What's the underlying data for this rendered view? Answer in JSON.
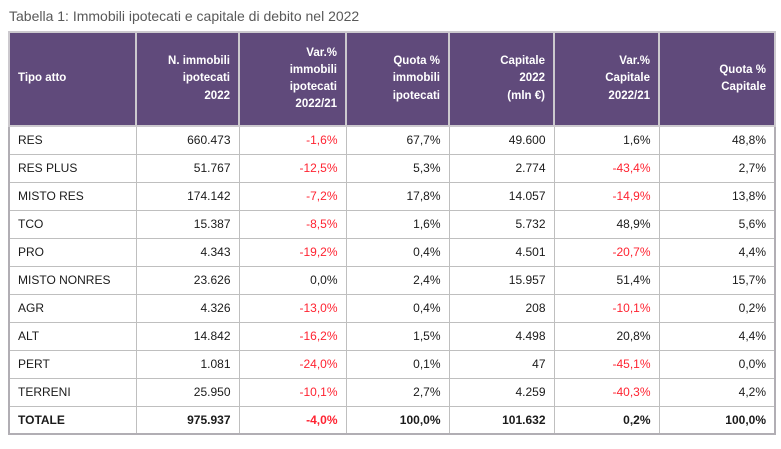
{
  "title": "Tabella 1: Immobili ipotecati e capitale di debito nel 2022",
  "colors": {
    "header_bg": "#604a7b",
    "header_text": "#ffffff",
    "negative": "#ff2331",
    "body_text": "#1a1a1a",
    "title_text": "#595959",
    "border": "#bfbfbf",
    "outer_border": "#b1aeb4",
    "page_bg": "#ffffff"
  },
  "table": {
    "columns": [
      {
        "key": "tipo_atto",
        "label": "Tipo atto"
      },
      {
        "key": "n_immobili_ipotecati_2022",
        "label": "N. immobili\nipotecati\n2022"
      },
      {
        "key": "var_pct_immobili_2022_21",
        "label": "Var.%\nimmobili\nipotecati\n2022/21"
      },
      {
        "key": "quota_pct_immobili",
        "label": "Quota %\nimmobili\nipotecati"
      },
      {
        "key": "capitale_2022_mln_eur",
        "label": "Capitale\n2022\n(mln €)"
      },
      {
        "key": "var_pct_capitale_2022_21",
        "label": "Var.%\nCapitale\n2022/21"
      },
      {
        "key": "quota_pct_capitale",
        "label": "Quota %\nCapitale"
      }
    ],
    "rows": [
      [
        "RES",
        "660.473",
        "-1,6%",
        "67,7%",
        "49.600",
        "1,6%",
        "48,8%"
      ],
      [
        "RES PLUS",
        "51.767",
        "-12,5%",
        "5,3%",
        "2.774",
        "-43,4%",
        "2,7%"
      ],
      [
        "MISTO RES",
        "174.142",
        "-7,2%",
        "17,8%",
        "14.057",
        "-14,9%",
        "13,8%"
      ],
      [
        "TCO",
        "15.387",
        "-8,5%",
        "1,6%",
        "5.732",
        "48,9%",
        "5,6%"
      ],
      [
        "PRO",
        "4.343",
        "-19,2%",
        "0,4%",
        "4.501",
        "-20,7%",
        "4,4%"
      ],
      [
        "MISTO NONRES",
        "23.626",
        "0,0%",
        "2,4%",
        "15.957",
        "51,4%",
        "15,7%"
      ],
      [
        "AGR",
        "4.326",
        "-13,0%",
        "0,4%",
        "208",
        "-10,1%",
        "0,2%"
      ],
      [
        "ALT",
        "14.842",
        "-16,2%",
        "1,5%",
        "4.498",
        "20,8%",
        "4,4%"
      ],
      [
        "PERT",
        "1.081",
        "-24,0%",
        "0,1%",
        "47",
        "-45,1%",
        "0,0%"
      ],
      [
        "TERRENI",
        "25.950",
        "-10,1%",
        "2,7%",
        "4.259",
        "-40,3%",
        "4,2%"
      ]
    ],
    "total_row": [
      "TOTALE",
      "975.937",
      "-4,0%",
      "100,0%",
      "101.632",
      "0,2%",
      "100,0%"
    ]
  }
}
